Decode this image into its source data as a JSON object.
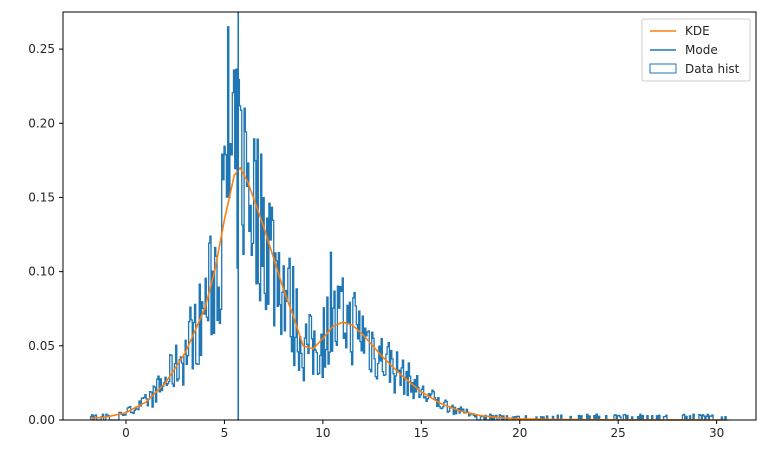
{
  "chart_data": {
    "type": "line",
    "title": "",
    "xlabel": "",
    "ylabel": "",
    "xlim": [
      -3.2,
      32.0
    ],
    "ylim": [
      0.0,
      0.275
    ],
    "xticks": [
      0,
      5,
      10,
      15,
      20,
      25,
      30
    ],
    "yticks": [
      0.0,
      0.05,
      0.1,
      0.15,
      0.2,
      0.25
    ],
    "xtick_labels": [
      "0",
      "5",
      "10",
      "15",
      "20",
      "25",
      "30"
    ],
    "ytick_labels": [
      "0.00",
      "0.05",
      "0.10",
      "0.15",
      "0.20",
      "0.25"
    ],
    "grid": false,
    "legend_position": "top-right",
    "legend": [
      "KDE",
      "Mode",
      "Data hist"
    ],
    "colors": {
      "kde": "#ff7f0e",
      "mode": "#1f77b4",
      "hist": "#1f77b4"
    },
    "series": [
      {
        "name": "KDE",
        "kind": "line",
        "x": [
          -1.8,
          -1,
          0,
          1,
          2,
          3,
          4,
          4.5,
          5,
          5.5,
          5.8,
          6.2,
          7,
          8,
          8.5,
          9,
          9.5,
          10,
          10.5,
          11,
          11.5,
          12,
          13,
          14,
          15,
          16,
          17,
          18,
          19,
          20,
          22,
          25,
          28,
          30.5
        ],
        "y": [
          0.001,
          0.002,
          0.005,
          0.012,
          0.025,
          0.045,
          0.075,
          0.1,
          0.135,
          0.165,
          0.17,
          0.16,
          0.13,
          0.088,
          0.07,
          0.05,
          0.048,
          0.055,
          0.063,
          0.066,
          0.064,
          0.058,
          0.043,
          0.03,
          0.019,
          0.011,
          0.006,
          0.003,
          0.0015,
          0.0008,
          0.0003,
          0.0001,
          5e-05,
          2e-05
        ]
      },
      {
        "name": "Mode",
        "kind": "vline",
        "x": 5.7
      },
      {
        "name": "Data hist",
        "kind": "step-histogram",
        "bin_start": -1.8,
        "bin_width": 0.06,
        "bin_count": 540,
        "range": [
          -1.8,
          30.7
        ],
        "outline_peaks": [
          {
            "x": 5.2,
            "y": 0.265
          },
          {
            "x": 10.4,
            "y": 0.113
          }
        ]
      }
    ]
  }
}
